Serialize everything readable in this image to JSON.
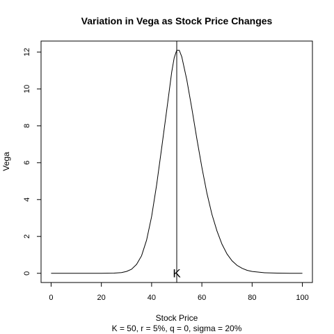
{
  "chart_data": {
    "type": "line",
    "title": "Variation in Vega as Stock Price Changes",
    "xlabel": "Stock Price",
    "ylabel": "Vega",
    "subtitle": "K = 50, r = 5%, q = 0, sigma = 20%",
    "xlim": [
      -4,
      104
    ],
    "ylim": [
      -0.5,
      12.6
    ],
    "x_ticks": [
      0,
      20,
      40,
      60,
      80,
      100
    ],
    "y_ticks": [
      0,
      2,
      4,
      6,
      8,
      10,
      12
    ],
    "grid": false,
    "legend": "none",
    "series": [
      {
        "color": "#000000",
        "x": [
          0,
          5,
          10,
          15,
          20,
          25,
          28,
          30,
          32,
          34,
          36,
          38,
          40,
          42,
          44,
          46,
          48,
          49,
          50,
          51,
          52,
          54,
          56,
          58,
          60,
          62,
          64,
          66,
          68,
          70,
          72,
          74,
          76,
          78,
          80,
          85,
          90,
          95,
          100
        ],
        "y": [
          0,
          0,
          0,
          0,
          0,
          0.01,
          0.04,
          0.1,
          0.22,
          0.48,
          0.95,
          1.8,
          3.08,
          4.8,
          6.8,
          8.84,
          10.92,
          11.7,
          12.1,
          12.1,
          11.75,
          10.5,
          8.95,
          7.3,
          5.75,
          4.35,
          3.2,
          2.3,
          1.58,
          1.05,
          0.68,
          0.43,
          0.27,
          0.16,
          0.1,
          0.03,
          0.01,
          0,
          0
        ]
      }
    ],
    "vline": {
      "x": 50,
      "color": "#000000"
    },
    "annotations": [
      {
        "text": "K",
        "x": 50,
        "y": 0
      }
    ]
  }
}
